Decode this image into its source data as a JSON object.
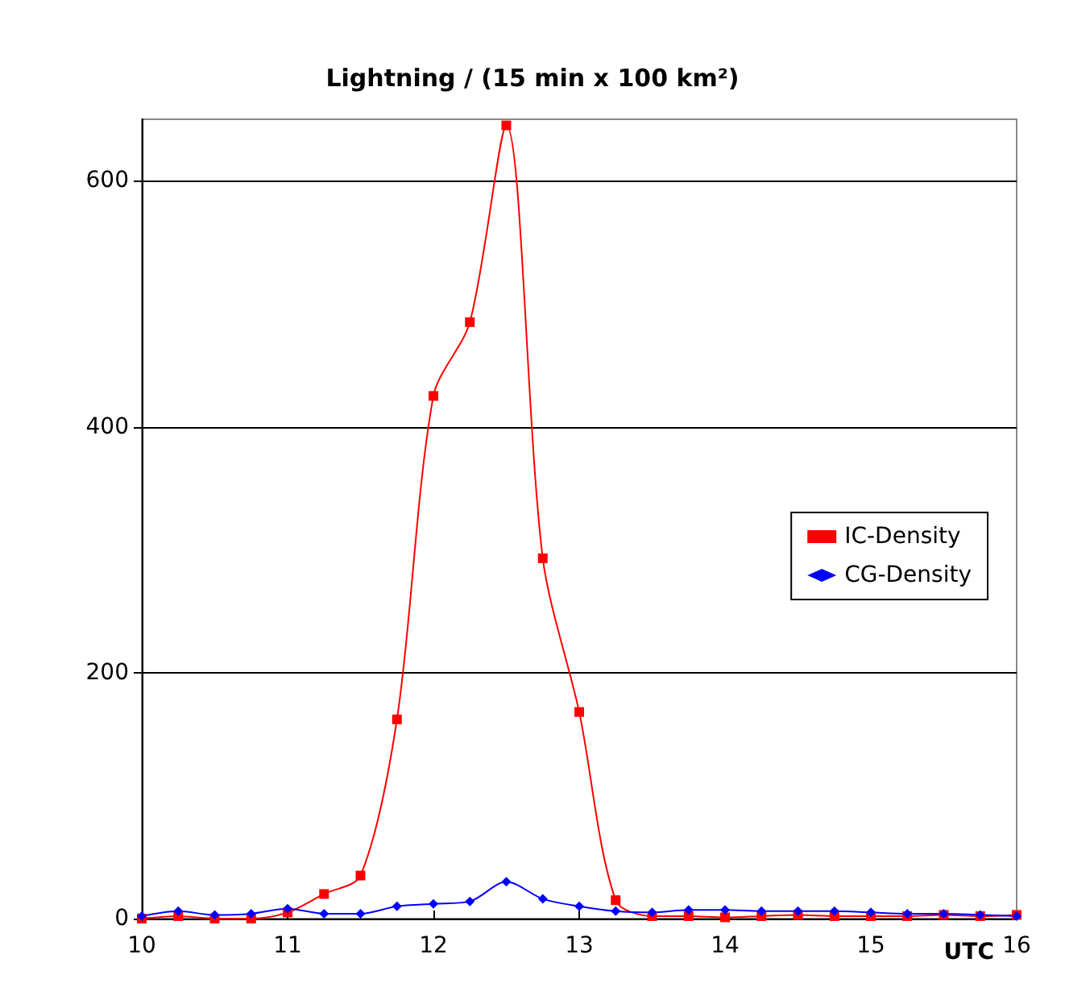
{
  "chart_data": {
    "type": "line",
    "title": "Lightning / (15 min x 100 km²)",
    "xlabel": "UTC",
    "x": [
      10,
      10.25,
      10.5,
      10.75,
      11,
      11.25,
      11.5,
      11.75,
      12,
      12.25,
      12.5,
      12.75,
      13,
      13.25,
      13.5,
      13.75,
      14,
      14.25,
      14.5,
      14.75,
      15,
      15.25,
      15.5,
      15.75,
      16
    ],
    "series": [
      {
        "name": "IC-Density",
        "color": "#ff0000",
        "marker": "square",
        "values": [
          0,
          2,
          0,
          0,
          5,
          20,
          35,
          162,
          425,
          485,
          645,
          293,
          168,
          15,
          2,
          2,
          1,
          2,
          3,
          2,
          2,
          2,
          3,
          2,
          3
        ]
      },
      {
        "name": "CG-Density",
        "color": "#0000ff",
        "marker": "diamond",
        "values": [
          2,
          6,
          3,
          4,
          8,
          4,
          4,
          10,
          12,
          14,
          30,
          16,
          10,
          6,
          5,
          7,
          7,
          6,
          6,
          6,
          5,
          4,
          4,
          3,
          2
        ]
      }
    ],
    "xlim": [
      10,
      16
    ],
    "xticks": [
      10,
      11,
      12,
      13,
      14,
      15,
      16
    ],
    "ylim": [
      0,
      650
    ],
    "yticks": [
      0,
      200,
      400,
      600
    ],
    "grid": "y",
    "legend": "right"
  }
}
